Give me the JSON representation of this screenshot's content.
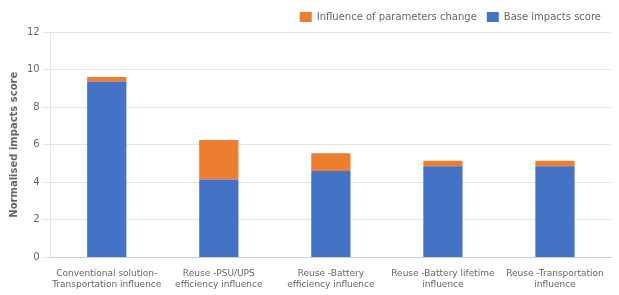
{
  "chart_data": {
    "type": "bar",
    "stacked": true,
    "categories": [
      "Conventional solution-\nTransportation influence",
      "Reuse -PSU/UPS\nefficiency influence",
      "Reuse -Battery\nefficiency influence",
      "Reuse -Battery lifetime\ninfluence",
      "Reuse -Transportation\ninfluence"
    ],
    "series": [
      {
        "name": "Base impacts score",
        "color": "#4472C4",
        "values": [
          9.35,
          4.15,
          4.6,
          4.85,
          4.85
        ]
      },
      {
        "name": "Influence of parameters change",
        "color": "#ED7D31",
        "values": [
          0.25,
          2.1,
          0.95,
          0.3,
          0.3
        ]
      }
    ],
    "ylabel": "Normalised impacts score",
    "ylim": [
      0,
      12
    ],
    "yticks": [
      0,
      2,
      4,
      6,
      8,
      10,
      12
    ],
    "grid": true,
    "legend": "upper right"
  }
}
